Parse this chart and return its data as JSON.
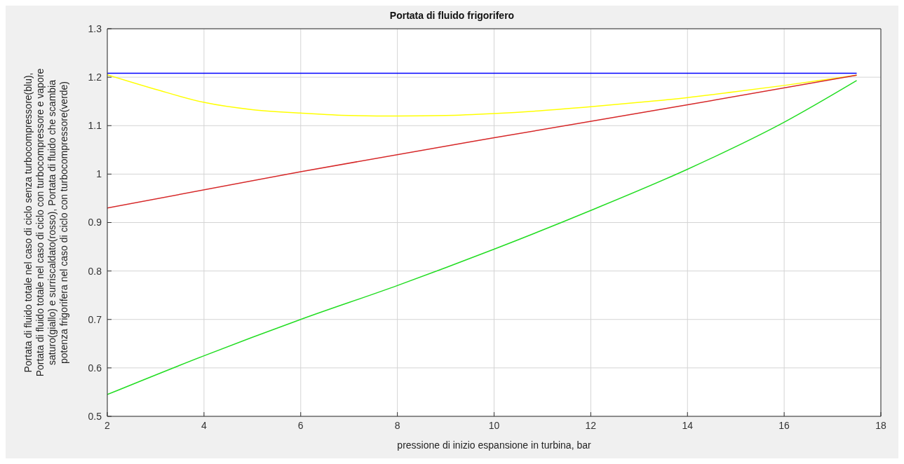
{
  "chart_data": {
    "type": "line",
    "title": "Portata di fluido frigorifero",
    "xlabel": "pressione di inizio espansione in turbina, bar",
    "ylabel": "Portata di fluido totale nel caso di ciclo senza turbocompressore(blu),\nPortata di fluido totale nel caso di ciclo con turbocompressore e vapore\nsaturo(giallo) e surriscaldato(rosso), Portata di fluido che scambia\npotenza frigorifera nel caso di ciclo con turbocompressore(verde)",
    "xlim": [
      2,
      18
    ],
    "xticks": [
      2,
      4,
      6,
      8,
      10,
      12,
      14,
      16,
      18
    ],
    "ylim": [
      0.5,
      1.3
    ],
    "yticks": [
      0.5,
      0.6,
      0.7,
      0.8,
      0.9,
      1,
      1.1,
      1.2,
      1.3
    ],
    "grid": true,
    "marker": "none",
    "line_style": "solid",
    "series": [
      {
        "color": "#0000ff",
        "x": [
          2,
          17.5
        ],
        "values": [
          1.208,
          1.208
        ]
      },
      {
        "color": "#ffff00",
        "x": [
          2,
          3,
          4,
          5,
          6,
          7,
          8,
          9,
          10,
          11,
          12,
          13,
          14,
          15,
          16,
          17,
          17.5
        ],
        "values": [
          1.205,
          1.175,
          1.148,
          1.133,
          1.126,
          1.121,
          1.12,
          1.121,
          1.125,
          1.131,
          1.139,
          1.148,
          1.158,
          1.17,
          1.183,
          1.197,
          1.204
        ]
      },
      {
        "color": "#d62728",
        "x": [
          2,
          6,
          10,
          14,
          17.5
        ],
        "values": [
          0.93,
          1.005,
          1.075,
          1.143,
          1.204
        ]
      },
      {
        "color": "#22dd22",
        "x": [
          2,
          4,
          6,
          8,
          10,
          12,
          14,
          16,
          17.5
        ],
        "values": [
          0.545,
          0.625,
          0.7,
          0.77,
          0.845,
          0.925,
          1.01,
          1.107,
          1.193
        ]
      }
    ]
  }
}
